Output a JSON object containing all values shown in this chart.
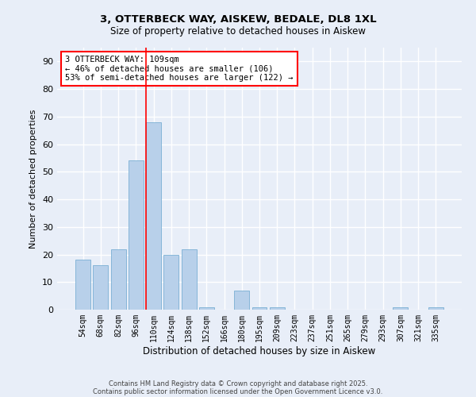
{
  "title_line1": "3, OTTERBECK WAY, AISKEW, BEDALE, DL8 1XL",
  "title_line2": "Size of property relative to detached houses in Aiskew",
  "xlabel": "Distribution of detached houses by size in Aiskew",
  "ylabel": "Number of detached properties",
  "categories": [
    "54sqm",
    "68sqm",
    "82sqm",
    "96sqm",
    "110sqm",
    "124sqm",
    "138sqm",
    "152sqm",
    "166sqm",
    "180sqm",
    "195sqm",
    "209sqm",
    "223sqm",
    "237sqm",
    "251sqm",
    "265sqm",
    "279sqm",
    "293sqm",
    "307sqm",
    "321sqm",
    "335sqm"
  ],
  "values": [
    18,
    16,
    22,
    54,
    68,
    20,
    22,
    1,
    0,
    7,
    1,
    1,
    0,
    0,
    0,
    0,
    0,
    0,
    1,
    0,
    1
  ],
  "bar_color": "#b8d0ea",
  "bar_edge_color": "#7aafd4",
  "vline_color": "red",
  "annotation_text": "3 OTTERBECK WAY: 109sqm\n← 46% of detached houses are smaller (106)\n53% of semi-detached houses are larger (122) →",
  "annotation_box_color": "white",
  "annotation_box_edge": "red",
  "ylim": [
    0,
    95
  ],
  "yticks": [
    0,
    10,
    20,
    30,
    40,
    50,
    60,
    70,
    80,
    90
  ],
  "footnote1": "Contains HM Land Registry data © Crown copyright and database right 2025.",
  "footnote2": "Contains public sector information licensed under the Open Government Licence v3.0.",
  "bg_color": "#e8eef8",
  "grid_color": "white"
}
